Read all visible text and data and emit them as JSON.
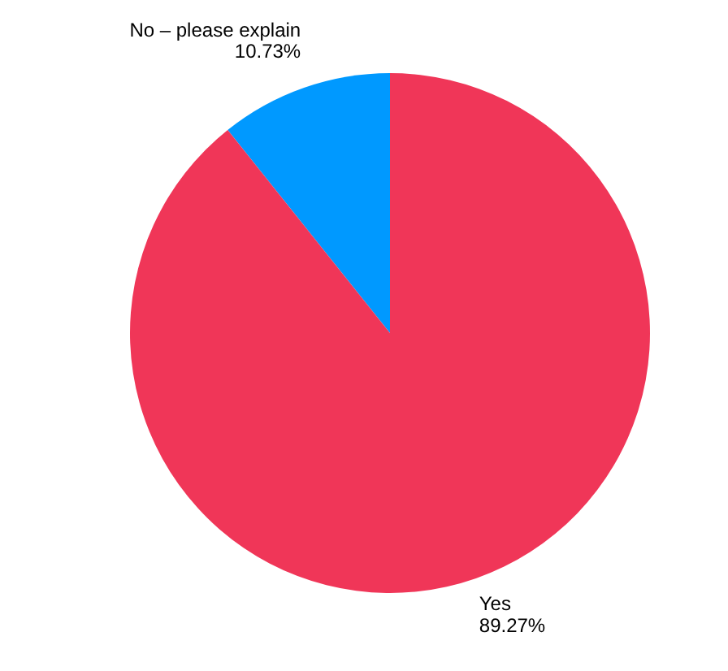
{
  "chart_data": {
    "type": "pie",
    "categories": [
      "No – please explain",
      "Yes"
    ],
    "values": [
      10.73,
      89.27
    ],
    "colors": [
      "#0099ff",
      "#f03658"
    ],
    "value_labels": [
      "10.73%",
      "89.27%"
    ],
    "legend": false
  }
}
